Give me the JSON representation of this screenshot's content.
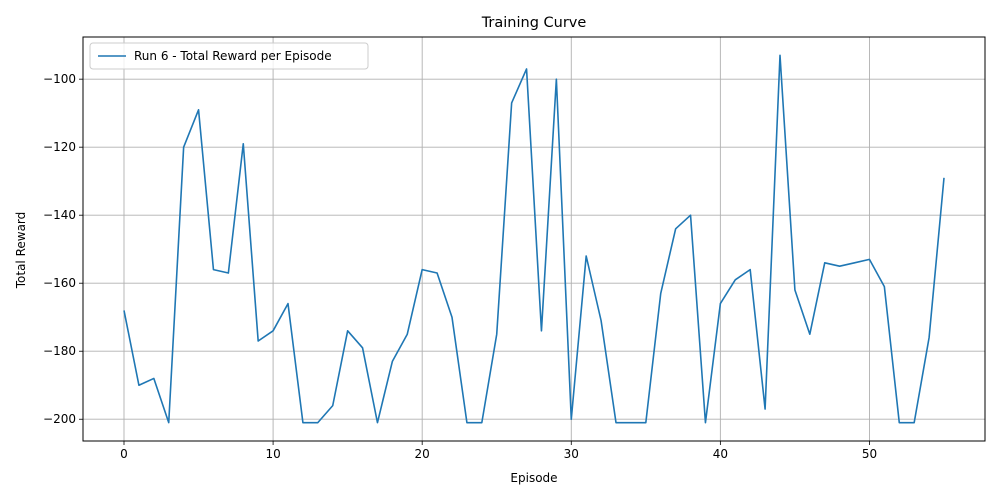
{
  "chart_data": {
    "type": "line",
    "title": "Training Curve",
    "xlabel": "Episode",
    "ylabel": "Total Reward",
    "xlim": [
      -2.75,
      57.75
    ],
    "ylim": [
      -206.4,
      -87.6
    ],
    "xticks": [
      0,
      10,
      20,
      30,
      40,
      50
    ],
    "yticks": [
      -200,
      -180,
      -160,
      -140,
      -120,
      -100
    ],
    "grid": true,
    "legend_position": "upper-left",
    "series": [
      {
        "name": "Run 6 - Total Reward per Episode",
        "color": "#1f77b4",
        "x": [
          0,
          1,
          2,
          3,
          4,
          5,
          6,
          7,
          8,
          9,
          10,
          11,
          12,
          13,
          14,
          15,
          16,
          17,
          18,
          19,
          20,
          21,
          22,
          23,
          24,
          25,
          26,
          27,
          28,
          29,
          30,
          31,
          32,
          33,
          34,
          35,
          36,
          37,
          38,
          39,
          40,
          41,
          42,
          43,
          44,
          45,
          46,
          47,
          48,
          49,
          50,
          51,
          52,
          53,
          54,
          55
        ],
        "y": [
          -168,
          -190,
          -188,
          -201,
          -120,
          -109,
          -156,
          -157,
          -119,
          -177,
          -174,
          -166,
          -201,
          -201,
          -196,
          -174,
          -179,
          -201,
          -183,
          -175,
          -156,
          -157,
          -170,
          -201,
          -201,
          -175,
          -107,
          -97,
          -174,
          -100,
          -200,
          -152,
          -171,
          -201,
          -201,
          -201,
          -163,
          -144,
          -140,
          -201,
          -166,
          -159,
          -156,
          -197,
          -93,
          -162,
          -175,
          -154,
          -155,
          -154,
          -153,
          -161,
          -201,
          -201,
          -176,
          -129
        ]
      }
    ]
  }
}
